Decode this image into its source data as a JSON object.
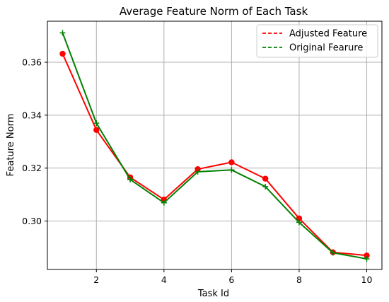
{
  "chart_data": {
    "type": "line",
    "title": "Average Feature Norm of Each Task",
    "xlabel": "Task Id",
    "ylabel": "Feature Norm",
    "x": [
      1,
      2,
      3,
      4,
      5,
      6,
      7,
      8,
      9,
      10
    ],
    "xlim": [
      0.55,
      10.45
    ],
    "ylim": [
      0.2817,
      0.3755
    ],
    "xticks": [
      2,
      4,
      6,
      8,
      10
    ],
    "yticks": [
      0.3,
      0.32,
      0.34,
      0.36
    ],
    "xtick_labels": [
      "2",
      "4",
      "6",
      "8",
      "10"
    ],
    "ytick_labels": [
      "0.30",
      "0.32",
      "0.34",
      "0.36"
    ],
    "grid": true,
    "legend_position": "top-right",
    "series": [
      {
        "name": "Adjusted Feature",
        "color": "#ff0000",
        "marker": "circle",
        "values": [
          0.3632,
          0.3344,
          0.3165,
          0.3081,
          0.3196,
          0.3222,
          0.316,
          0.301,
          0.2882,
          0.287
        ]
      },
      {
        "name": "Original Fearure",
        "color": "#008000",
        "marker": "plus",
        "values": [
          0.3711,
          0.337,
          0.3157,
          0.3069,
          0.3186,
          0.3193,
          0.313,
          0.2995,
          0.288,
          0.2857
        ]
      }
    ]
  }
}
